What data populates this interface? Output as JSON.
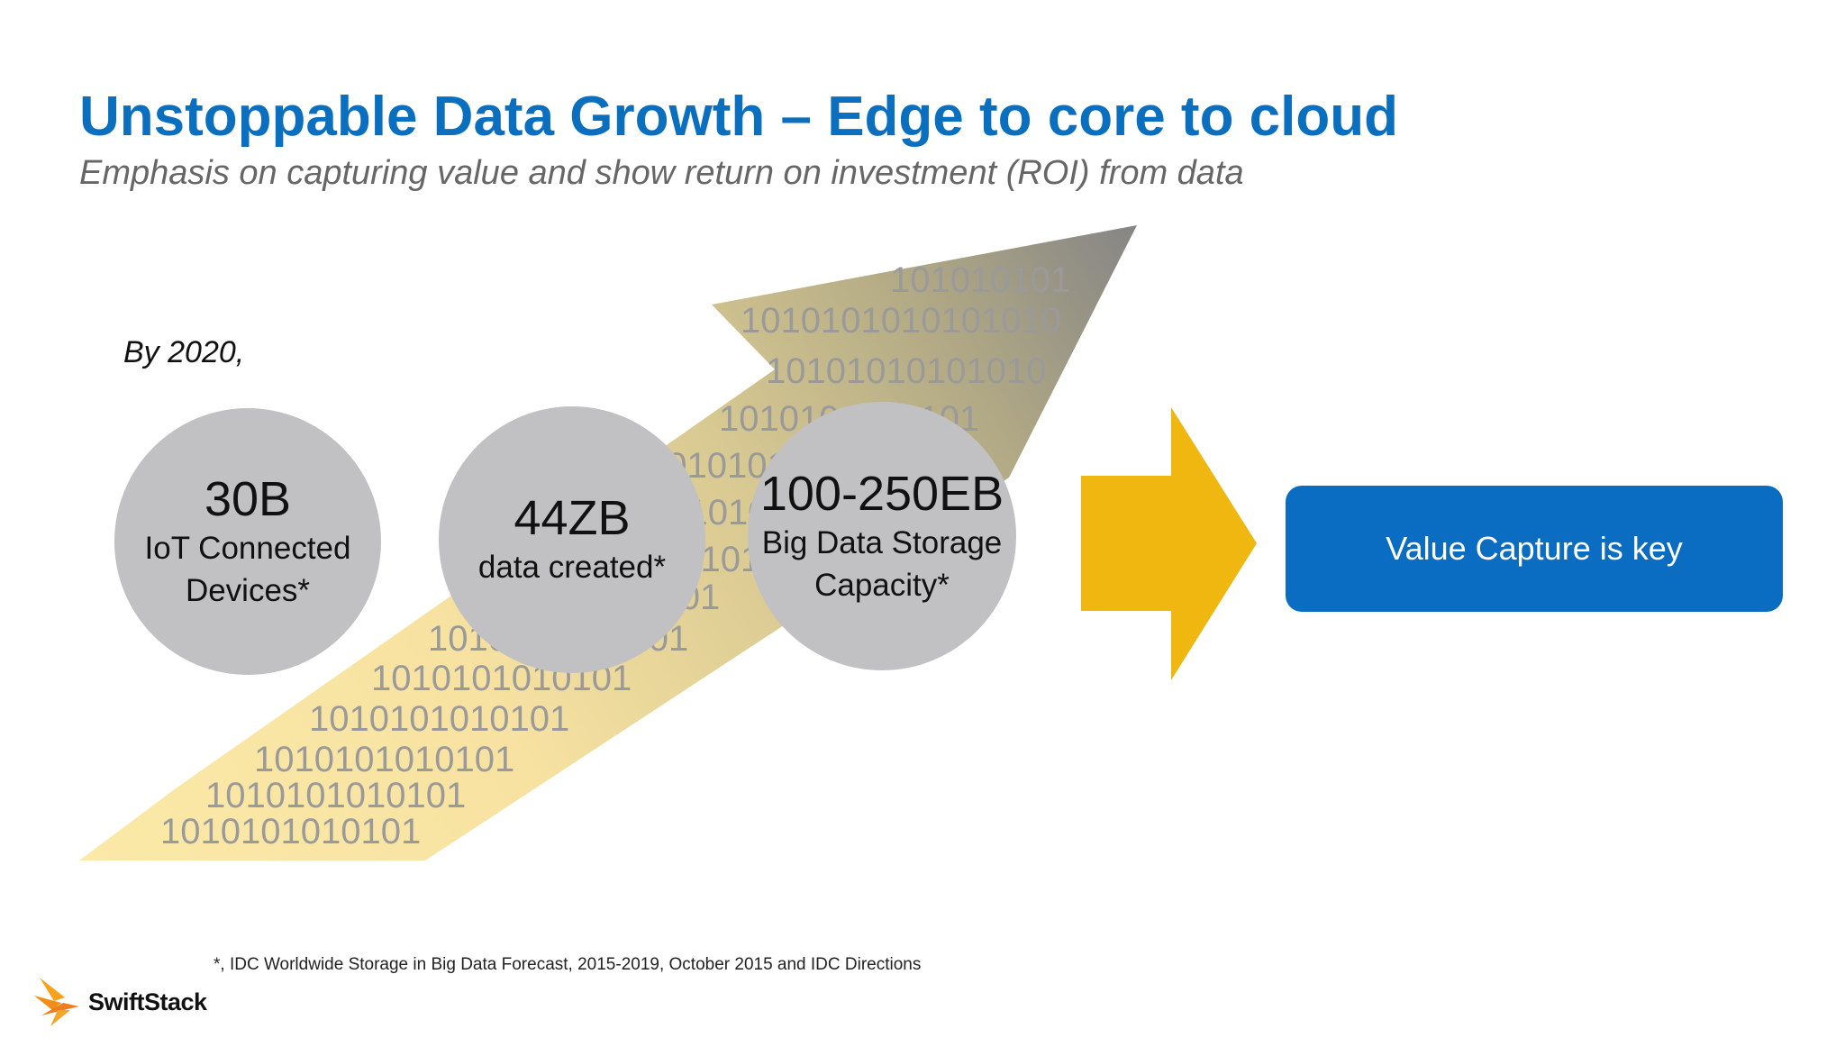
{
  "slide": {
    "title": "Unstoppable Data Growth – Edge to core to cloud",
    "subtitle": "Emphasis on capturing value and show return on investment (ROI) from data",
    "intro": "By 2020,"
  },
  "binary_lines": [
    "101010101",
    "1010101010101010",
    "10101010101010",
    "1010101010101",
    "1010101010101",
    "1010101010101",
    "1010101010101",
    "1010101010101",
    "1010101010101",
    "1010101010101",
    "1010101010101",
    "1010101010101",
    "1010101010101"
  ],
  "stats": [
    {
      "value": "30B",
      "label_line1": "IoT Connected",
      "label_line2": "Devices*"
    },
    {
      "value": "44ZB",
      "label_line1": "data created*",
      "label_line2": ""
    },
    {
      "value": "100-250EB",
      "label_line1": "Big Data Storage",
      "label_line2": "Capacity*"
    }
  ],
  "callout": {
    "label": "Value Capture is key"
  },
  "footnote": "*, IDC Worldwide Storage in Big Data Forecast, 2015-2019, October 2015 and IDC Directions",
  "logo": {
    "name": "SwiftStack",
    "icon": "swiftstack-bird-icon"
  },
  "colors": {
    "title": "#0b6fbf",
    "arrow_start": "#fbe7a5",
    "arrow_end": "#8a8a8a",
    "right_arrow": "#f0b711",
    "callout_bg": "#0a6dc2",
    "circle": "#c1c1c4"
  }
}
